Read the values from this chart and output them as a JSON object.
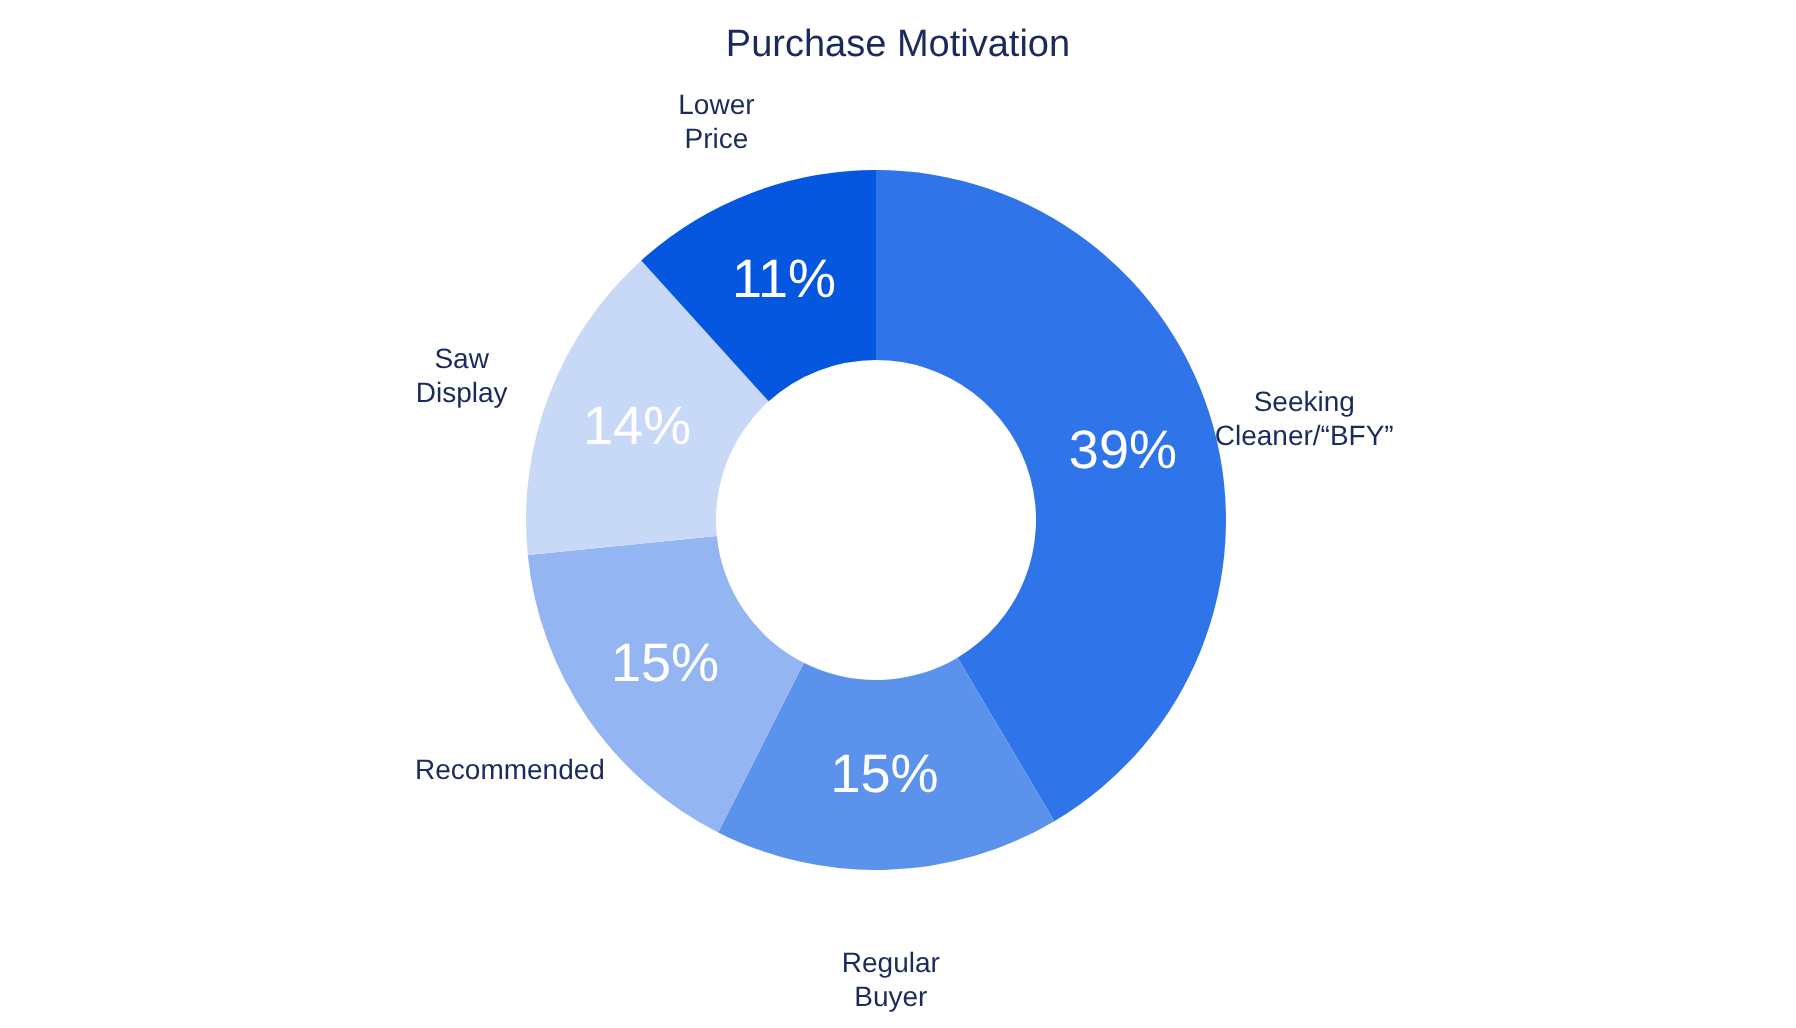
{
  "chart_data": {
    "type": "donut",
    "title": "Purchase Motivation",
    "categories": [
      "Seeking Cleaner/“BFY”",
      "Regular Buyer",
      "Recommended",
      "Saw Display",
      "Lower Price"
    ],
    "values": [
      39,
      15,
      15,
      14,
      11
    ],
    "value_labels": [
      "39%",
      "15%",
      "15%",
      "14%",
      "11%"
    ],
    "colors": [
      "#2f74e8",
      "#5b93ec",
      "#93b5f2",
      "#c8d9f8",
      "#0557e0"
    ],
    "legend": false
  }
}
